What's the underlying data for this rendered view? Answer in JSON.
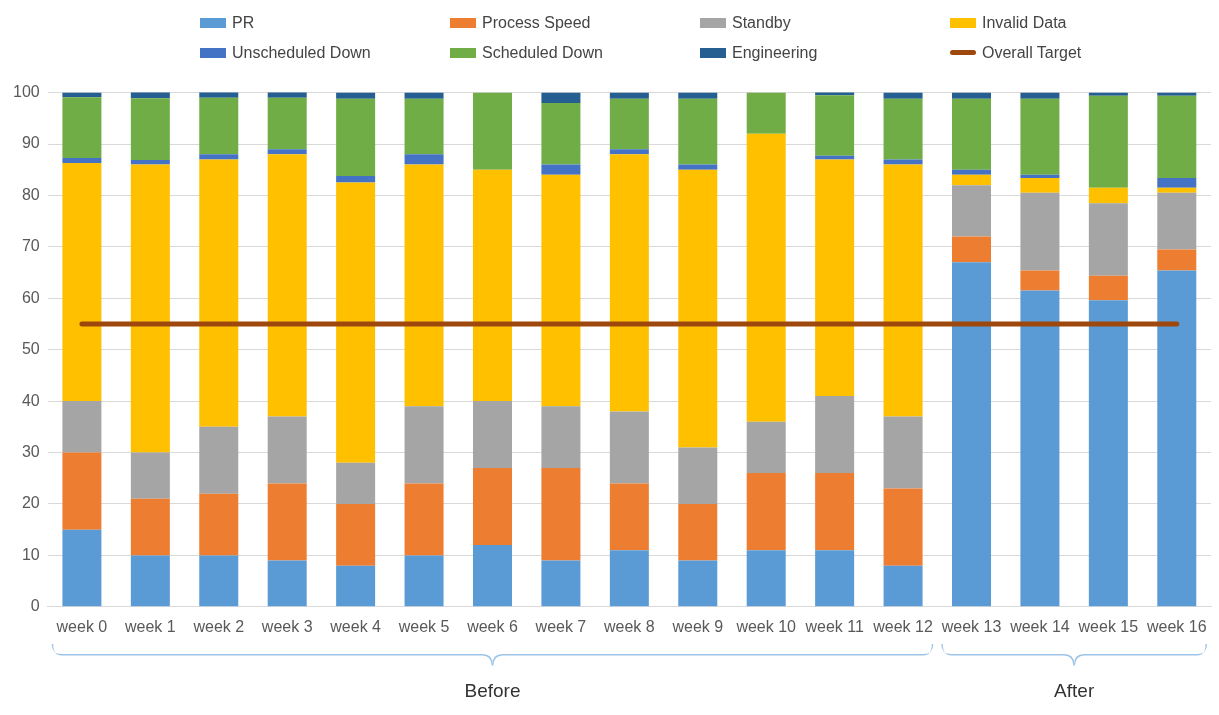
{
  "chart_data": {
    "type": "bar",
    "stacked": true,
    "categories": [
      "week 0",
      "week 1",
      "week 2",
      "week 3",
      "week 4",
      "week 5",
      "week 6",
      "week 7",
      "week 8",
      "week 9",
      "week 10",
      "week 11",
      "week 12",
      "week 13",
      "week 14",
      "week 15",
      "week 16"
    ],
    "series": [
      {
        "name": "PR",
        "color": "#5b9bd5",
        "values": [
          15,
          10,
          10,
          9,
          8,
          10,
          12,
          9,
          11,
          9,
          11,
          11,
          8,
          67,
          61.5,
          59.6,
          65.4
        ]
      },
      {
        "name": "Process Speed",
        "color": "#ed7d31",
        "values": [
          15,
          11,
          12,
          15,
          12,
          14,
          15,
          18,
          13,
          11,
          15,
          15,
          15,
          5,
          3.9,
          4.8,
          4.1
        ]
      },
      {
        "name": "Standby",
        "color": "#a5a5a5",
        "values": [
          10,
          9,
          13,
          13,
          8,
          15,
          13,
          12,
          14,
          11,
          10,
          15,
          14,
          10,
          15.1,
          14.1,
          11
        ]
      },
      {
        "name": "Invalid Data",
        "color": "#ffc000",
        "values": [
          46.3,
          56,
          52,
          51,
          54.5,
          47,
          45,
          45,
          50,
          54,
          56,
          46,
          49,
          2,
          2.9,
          3,
          1
        ]
      },
      {
        "name": "Unscheduled Down",
        "color": "#4472c4",
        "values": [
          1,
          0.9,
          1,
          1,
          1.3,
          2,
          0,
          2,
          1,
          1,
          0,
          0.7,
          1,
          1,
          0.6,
          0,
          1.9
        ]
      },
      {
        "name": "Scheduled Down",
        "color": "#70ad47",
        "values": [
          11.8,
          12,
          11,
          10,
          15,
          10.8,
          15,
          12,
          9.8,
          12.8,
          8,
          11.8,
          11.8,
          13.8,
          14.8,
          17.9,
          16
        ]
      },
      {
        "name": "Engineering",
        "color": "#255e91",
        "values": [
          0.9,
          1.2,
          1.2,
          1.2,
          1.2,
          1.2,
          0,
          2,
          1.2,
          1.2,
          0,
          0.6,
          1.2,
          1.2,
          1.2,
          0.6,
          0.6
        ]
      },
      {
        "name": "Overall Target",
        "type": "line",
        "color": "#9e480e",
        "values": [
          55,
          55,
          55,
          55,
          55,
          55,
          55,
          55,
          55,
          55,
          55,
          55,
          55,
          55,
          55,
          55,
          55
        ]
      }
    ],
    "ylim": [
      0,
      100
    ],
    "yticks": [
      0,
      10,
      20,
      30,
      40,
      50,
      60,
      70,
      80,
      90,
      100
    ],
    "grid": "y",
    "legend": "top",
    "marker": "none",
    "annotations": [
      "Before",
      "After"
    ]
  }
}
